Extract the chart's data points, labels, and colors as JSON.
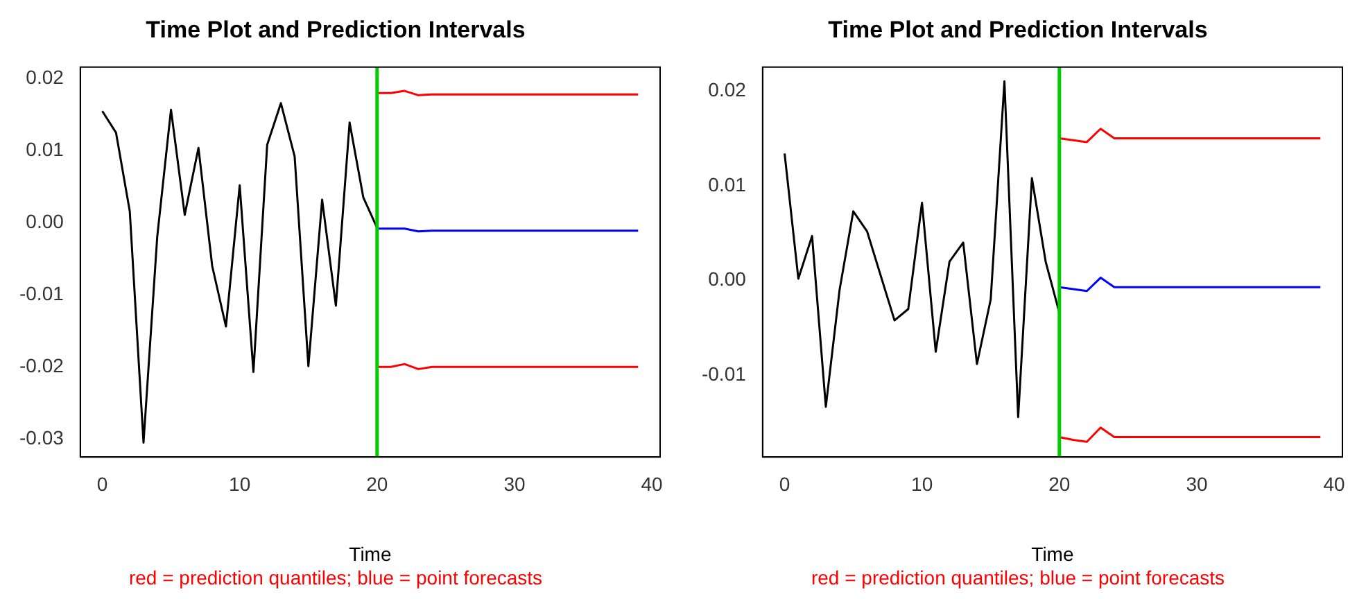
{
  "chart_data": [
    {
      "type": "line",
      "title": "Time Plot and Prediction Intervals",
      "xlabel": "Time",
      "annotations": [
        "red = prediction quantiles; blue = point forecasts"
      ],
      "xlim": [
        -1.6,
        40.6
      ],
      "xticks": [
        0,
        10,
        20,
        30,
        40
      ],
      "ylim": [
        -0.0325,
        0.0216
      ],
      "yticks": [
        -0.03,
        -0.02,
        -0.01,
        {
          "value": 0,
          "label": "0.00"
        },
        0.01,
        0.02
      ],
      "grid": false,
      "legend": false,
      "marker": "none",
      "line_style": "solid",
      "ref_lines": [
        {
          "axis": "x",
          "value": 20,
          "color": "#00cc00"
        }
      ],
      "series": [
        {
          "color": "#000000",
          "x": [
            0,
            1,
            2,
            3,
            4,
            5,
            6,
            7,
            8,
            9,
            10,
            11,
            12,
            13,
            14,
            15,
            16,
            17,
            18,
            19,
            20
          ],
          "values": [
            0.0155,
            0.0125,
            0.0016,
            -0.0305,
            -0.0019,
            0.0157,
            0.0011,
            0.0104,
            -0.006,
            -0.0144,
            0.0052,
            -0.0207,
            0.0108,
            0.0166,
            0.0092,
            -0.0199,
            0.0032,
            -0.0115,
            0.0139,
            0.0035,
            -0.0007
          ]
        },
        {
          "color": "#ff0000",
          "x": [
            20,
            21,
            22,
            23,
            24,
            25,
            26,
            27,
            28,
            29,
            30,
            31,
            32,
            33,
            34,
            35,
            36,
            37,
            38,
            39
          ],
          "values": [
            0.018,
            0.018,
            0.0183,
            0.0177,
            0.0178,
            0.0178,
            0.0178,
            0.0178,
            0.0178,
            0.0178,
            0.0178,
            0.0178,
            0.0178,
            0.0178,
            0.0178,
            0.0178,
            0.0178,
            0.0178,
            0.0178,
            0.0178
          ]
        },
        {
          "color": "#0000ff",
          "x": [
            20,
            21,
            22,
            23,
            24,
            25,
            26,
            27,
            28,
            29,
            30,
            31,
            32,
            33,
            34,
            35,
            36,
            37,
            38,
            39
          ],
          "values": [
            -0.0008,
            -0.0008,
            -0.0008,
            -0.0012,
            -0.0011,
            -0.0011,
            -0.0011,
            -0.0011,
            -0.0011,
            -0.0011,
            -0.0011,
            -0.0011,
            -0.0011,
            -0.0011,
            -0.0011,
            -0.0011,
            -0.0011,
            -0.0011,
            -0.0011,
            -0.0011
          ]
        },
        {
          "color": "#ff0000",
          "x": [
            20,
            21,
            22,
            23,
            24,
            25,
            26,
            27,
            28,
            29,
            30,
            31,
            32,
            33,
            34,
            35,
            36,
            37,
            38,
            39
          ],
          "values": [
            -0.02,
            -0.02,
            -0.0196,
            -0.0203,
            -0.02,
            -0.02,
            -0.02,
            -0.02,
            -0.02,
            -0.02,
            -0.02,
            -0.02,
            -0.02,
            -0.02,
            -0.02,
            -0.02,
            -0.02,
            -0.02,
            -0.02,
            -0.02
          ]
        }
      ]
    },
    {
      "type": "line",
      "title": "Time Plot and Prediction Intervals",
      "xlabel": "Time",
      "annotations": [
        "red = prediction quantiles; blue = point forecasts"
      ],
      "xlim": [
        -1.6,
        40.6
      ],
      "xticks": [
        0,
        10,
        20,
        30,
        40
      ],
      "ylim": [
        -0.0186,
        0.0225
      ],
      "yticks": [
        -0.01,
        {
          "value": 0,
          "label": "0.00"
        },
        0.01,
        0.02
      ],
      "grid": false,
      "legend": false,
      "marker": "none",
      "line_style": "solid",
      "ref_lines": [
        {
          "axis": "x",
          "value": 20,
          "color": "#00cc00"
        }
      ],
      "series": [
        {
          "color": "#000000",
          "x": [
            0,
            1,
            2,
            3,
            4,
            5,
            6,
            7,
            8,
            9,
            10,
            11,
            12,
            13,
            14,
            15,
            16,
            17,
            18,
            19,
            20
          ],
          "values": [
            0.0134,
            0.0002,
            0.0047,
            -0.0133,
            -0.001,
            0.0073,
            0.0052,
            0.0005,
            -0.0042,
            -0.003,
            0.0082,
            -0.0075,
            0.002,
            0.004,
            -0.0088,
            -0.002,
            0.021,
            -0.0144,
            0.0108,
            0.002,
            -0.0034
          ]
        },
        {
          "color": "#ff0000",
          "x": [
            20,
            21,
            22,
            23,
            24,
            25,
            26,
            27,
            28,
            29,
            30,
            31,
            32,
            33,
            34,
            35,
            36,
            37,
            38,
            39
          ],
          "values": [
            0.015,
            0.0148,
            0.0146,
            0.016,
            0.015,
            0.015,
            0.015,
            0.015,
            0.015,
            0.015,
            0.015,
            0.015,
            0.015,
            0.015,
            0.015,
            0.015,
            0.015,
            0.015,
            0.015,
            0.015
          ]
        },
        {
          "color": "#0000ff",
          "x": [
            20,
            21,
            22,
            23,
            24,
            25,
            26,
            27,
            28,
            29,
            30,
            31,
            32,
            33,
            34,
            35,
            36,
            37,
            38,
            39
          ],
          "values": [
            -0.0007,
            -0.0009,
            -0.0011,
            0.0003,
            -0.0007,
            -0.0007,
            -0.0007,
            -0.0007,
            -0.0007,
            -0.0007,
            -0.0007,
            -0.0007,
            -0.0007,
            -0.0007,
            -0.0007,
            -0.0007,
            -0.0007,
            -0.0007,
            -0.0007,
            -0.0007
          ]
        },
        {
          "color": "#ff0000",
          "x": [
            20,
            21,
            22,
            23,
            24,
            25,
            26,
            27,
            28,
            29,
            30,
            31,
            32,
            33,
            34,
            35,
            36,
            37,
            38,
            39
          ],
          "values": [
            -0.0165,
            -0.0168,
            -0.017,
            -0.0155,
            -0.0165,
            -0.0165,
            -0.0165,
            -0.0165,
            -0.0165,
            -0.0165,
            -0.0165,
            -0.0165,
            -0.0165,
            -0.0165,
            -0.0165,
            -0.0165,
            -0.0165,
            -0.0165,
            -0.0165,
            -0.0165
          ]
        }
      ]
    }
  ]
}
